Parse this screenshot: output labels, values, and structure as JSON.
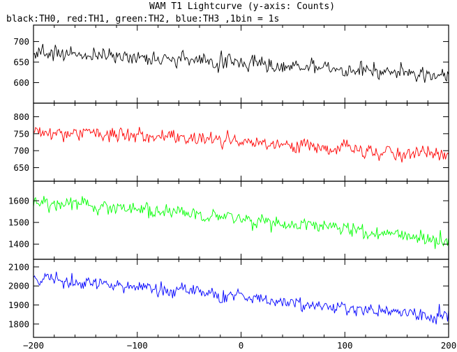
{
  "chart_data": {
    "type": "line",
    "title": "WAM T1 Lightcurve (y-axis: Counts)",
    "subtitle": "black:TH0, red:TH1, green:TH2, blue:TH3 ,1bin = 1s",
    "xlabel": "",
    "ylabel": "",
    "grid": false,
    "legend": "none",
    "x_range": [
      -200,
      200
    ],
    "x_ticks": [
      -200,
      -100,
      0,
      100,
      200
    ],
    "x_tick_labels": [
      "−200",
      "−100",
      "0",
      "100",
      "200"
    ],
    "panels": [
      {
        "channel": "TH0",
        "color": "#000000",
        "ylim": [
          550,
          740
        ],
        "y_ticks": [
          600,
          650,
          700
        ],
        "y_tick_labels": [
          "600",
          "650",
          "700"
        ],
        "trend": {
          "x": [
            -200,
            -150,
            -100,
            -50,
            0,
            50,
            100,
            150,
            200
          ],
          "y": [
            672,
            668,
            662,
            655,
            648,
            640,
            632,
            622,
            612
          ]
        },
        "noise": 26
      },
      {
        "channel": "TH1",
        "color": "#ff0000",
        "ylim": [
          610,
          840
        ],
        "y_ticks": [
          650,
          700,
          750,
          800
        ],
        "y_tick_labels": [
          "650",
          "700",
          "750",
          "800"
        ],
        "trend": {
          "x": [
            -200,
            -150,
            -100,
            -50,
            0,
            50,
            100,
            150,
            200
          ],
          "y": [
            755,
            748,
            742,
            735,
            725,
            715,
            705,
            695,
            685
          ]
        },
        "noise": 30
      },
      {
        "channel": "TH2",
        "color": "#00ff00",
        "ylim": [
          1330,
          1690
        ],
        "y_ticks": [
          1400,
          1500,
          1600
        ],
        "y_tick_labels": [
          "1400",
          "1500",
          "1600"
        ],
        "trend": {
          "x": [
            -200,
            -150,
            -100,
            -50,
            0,
            50,
            100,
            150,
            200
          ],
          "y": [
            1600,
            1580,
            1560,
            1540,
            1515,
            1490,
            1470,
            1440,
            1410
          ]
        },
        "noise": 45
      },
      {
        "channel": "TH3",
        "color": "#0000ff",
        "ylim": [
          1730,
          2140
        ],
        "y_ticks": [
          1800,
          1900,
          2000,
          2100
        ],
        "y_tick_labels": [
          "1800",
          "1900",
          "2000",
          "2100"
        ],
        "trend": {
          "x": [
            -200,
            -150,
            -100,
            -50,
            0,
            50,
            100,
            150,
            200
          ],
          "y": [
            2045,
            2020,
            2000,
            1970,
            1940,
            1910,
            1880,
            1855,
            1830
          ]
        },
        "noise": 50
      }
    ]
  }
}
